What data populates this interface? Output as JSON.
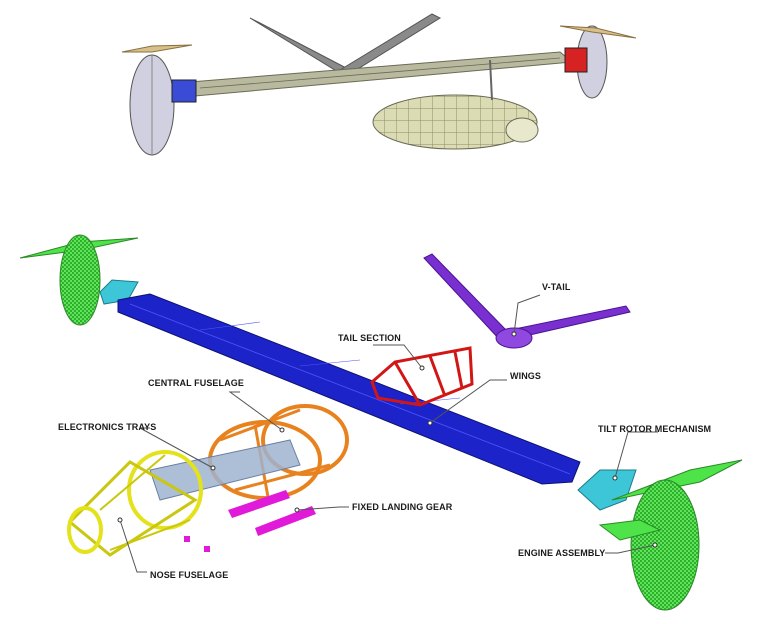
{
  "labels": {
    "v_tail": "V-TAIL",
    "tail_section": "TAIL SECTION",
    "wings": "WINGS",
    "central_fuselage": "CENTRAL FUSELAGE",
    "electronics_trays": "ELECTRONICS TRAYS",
    "tilt_rotor_mechanism": "TILT ROTOR MECHANISM",
    "fixed_landing_gear": "FIXED LANDING GEAR",
    "engine_assembly": "ENGINE ASSEMBLY",
    "nose_fuselage": "NOSE FUSELAGE"
  },
  "colors": {
    "wings": "#1c23c9",
    "v_tail": "#7a2fd0",
    "tail_section": "#d21616",
    "central_fuselage": "#e8821e",
    "nose_fuselage": "#e4e21a",
    "engine_assembly": "#4fe34a",
    "tilt_rotor_mechanism": "#3cc6d8",
    "landing_gear": "#e01ad8",
    "electronics_trays": "#9fb3d0",
    "assembled_body": "#dcdcb4",
    "leader_line": "#555555"
  }
}
